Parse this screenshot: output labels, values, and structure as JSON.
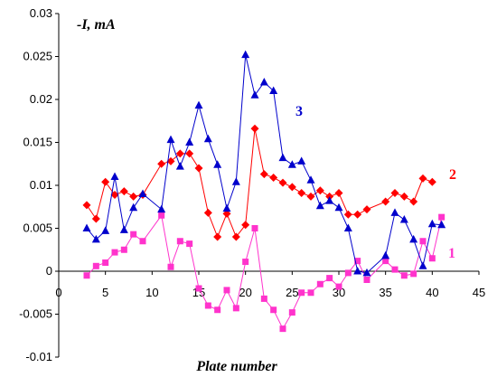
{
  "chart_data": {
    "type": "line",
    "ylabel": "-I, mA",
    "xlabel": "Plate number",
    "xlim": [
      0,
      45
    ],
    "ylim": [
      -0.01,
      0.03
    ],
    "x_ticks": [
      "0",
      "5",
      "10",
      "15",
      "20",
      "25",
      "30",
      "35",
      "40",
      "45"
    ],
    "y_ticks": [
      "-0.01",
      "-0.005",
      "0",
      "0.005",
      "0.01",
      "0.015",
      "0.02",
      "0.025",
      "0.03"
    ],
    "grid": false,
    "series": [
      {
        "name": "1",
        "color": "#ff33cc",
        "marker": "square",
        "points": [
          [
            3,
            -0.0005
          ],
          [
            4,
            0.0006
          ],
          [
            5,
            0.001
          ],
          [
            6,
            0.0022
          ],
          [
            7,
            0.0025
          ],
          [
            8,
            0.0043
          ],
          [
            9,
            0.0035
          ],
          [
            11,
            0.0065
          ],
          [
            12,
            0.0005
          ],
          [
            13,
            0.0035
          ],
          [
            14,
            0.0032
          ],
          [
            15,
            -0.002
          ],
          [
            16,
            -0.004
          ],
          [
            17,
            -0.0045
          ],
          [
            18,
            -0.0022
          ],
          [
            19,
            -0.0043
          ],
          [
            20,
            0.0011
          ],
          [
            21,
            0.005
          ],
          [
            22,
            -0.0032
          ],
          [
            23,
            -0.0045
          ],
          [
            24,
            -0.0067
          ],
          [
            25,
            -0.0048
          ],
          [
            26,
            -0.0025
          ],
          [
            27,
            -0.0025
          ],
          [
            28,
            -0.0015
          ],
          [
            29,
            -0.0008
          ],
          [
            30,
            -0.0018
          ],
          [
            31,
            -0.0002
          ],
          [
            32,
            0.0012
          ],
          [
            33,
            -0.001
          ],
          [
            35,
            0.0012
          ],
          [
            36,
            0.0002
          ],
          [
            37,
            -0.0005
          ],
          [
            38,
            -0.0003
          ],
          [
            39,
            0.0035
          ],
          [
            40,
            0.0015
          ],
          [
            41,
            0.0063
          ]
        ]
      },
      {
        "name": "2",
        "color": "#ff0000",
        "marker": "diamond",
        "points": [
          [
            3,
            0.0077
          ],
          [
            4,
            0.0061
          ],
          [
            5,
            0.0104
          ],
          [
            6,
            0.0089
          ],
          [
            7,
            0.0093
          ],
          [
            8,
            0.0087
          ],
          [
            9,
            0.0089
          ],
          [
            11,
            0.0125
          ],
          [
            12,
            0.0128
          ],
          [
            13,
            0.0137
          ],
          [
            14,
            0.0137
          ],
          [
            15,
            0.012
          ],
          [
            16,
            0.0068
          ],
          [
            17,
            0.004
          ],
          [
            18,
            0.0067
          ],
          [
            19,
            0.004
          ],
          [
            20,
            0.0054
          ],
          [
            21,
            0.0166
          ],
          [
            22,
            0.0113
          ],
          [
            23,
            0.0109
          ],
          [
            24,
            0.0103
          ],
          [
            25,
            0.0098
          ],
          [
            26,
            0.0091
          ],
          [
            27,
            0.0087
          ],
          [
            28,
            0.0094
          ],
          [
            29,
            0.0087
          ],
          [
            30,
            0.0091
          ],
          [
            31,
            0.0066
          ],
          [
            32,
            0.0066
          ],
          [
            33,
            0.0072
          ],
          [
            35,
            0.0081
          ],
          [
            36,
            0.0091
          ],
          [
            37,
            0.0087
          ],
          [
            38,
            0.0081
          ],
          [
            39,
            0.0108
          ],
          [
            40,
            0.0104
          ]
        ]
      },
      {
        "name": "3",
        "color": "#0000cc",
        "marker": "triangle",
        "points": [
          [
            3,
            0.005
          ],
          [
            4,
            0.0037
          ],
          [
            5,
            0.0047
          ],
          [
            6,
            0.011
          ],
          [
            7,
            0.0048
          ],
          [
            8,
            0.0074
          ],
          [
            9,
            0.009
          ],
          [
            11,
            0.0072
          ],
          [
            12,
            0.0153
          ],
          [
            13,
            0.0122
          ],
          [
            14,
            0.015
          ],
          [
            15,
            0.0193
          ],
          [
            16,
            0.0154
          ],
          [
            17,
            0.0124
          ],
          [
            18,
            0.0073
          ],
          [
            19,
            0.0104
          ],
          [
            20,
            0.0252
          ],
          [
            21,
            0.0205
          ],
          [
            22,
            0.022
          ],
          [
            23,
            0.021
          ],
          [
            24,
            0.0132
          ],
          [
            25,
            0.0124
          ],
          [
            26,
            0.0128
          ],
          [
            27,
            0.0106
          ],
          [
            28,
            0.0076
          ],
          [
            29,
            0.0082
          ],
          [
            30,
            0.0074
          ],
          [
            31,
            0.005
          ],
          [
            32,
            0.0
          ],
          [
            33,
            -0.0002
          ],
          [
            35,
            0.0018
          ],
          [
            36,
            0.0068
          ],
          [
            37,
            0.006
          ],
          [
            38,
            0.0037
          ],
          [
            39,
            0.0006
          ],
          [
            40,
            0.0055
          ],
          [
            41,
            0.0054
          ]
        ]
      }
    ]
  }
}
